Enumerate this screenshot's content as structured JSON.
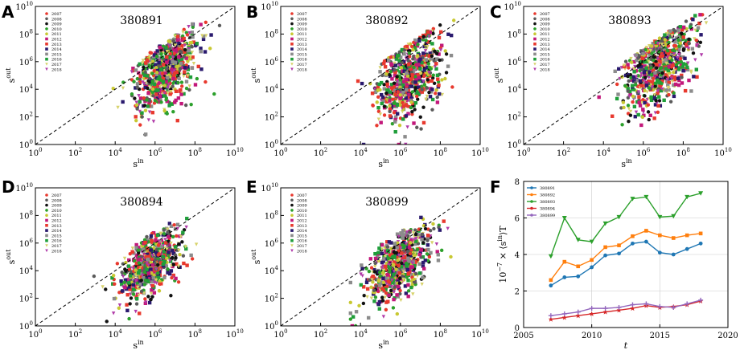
{
  "colors": {
    "2007": "#e8392e",
    "2008": "#5b5b5b",
    "2009": "#111111",
    "2010": "#2ca02c",
    "2011": "#c8c832",
    "2012": "#c2187a",
    "2013": "#e8392e",
    "2014": "#2a1a6e",
    "2015": "#8c8c8c",
    "2016": "#1f9e3a",
    "2017": "#d7d26b",
    "2018": "#b03aa8",
    "series_380891": "#1f77b4",
    "series_380892": "#ff7f0e",
    "series_380893": "#2ca02c",
    "series_380894": "#d62728",
    "series_380899": "#9467bd"
  },
  "chart_data": [
    {
      "type": "scatter",
      "panel": "A",
      "title": "380891",
      "xlabel_base": "s",
      "xlabel_sup": "in",
      "ylabel_base": "s",
      "ylabel_sup": "out",
      "xlim_log10": [
        0,
        10
      ],
      "ylim_log10": [
        0,
        10
      ],
      "x_ticks": [
        {
          "base": "10",
          "exp": "0"
        },
        {
          "base": "10",
          "exp": "2"
        },
        {
          "base": "10",
          "exp": "4"
        },
        {
          "base": "10",
          "exp": "6"
        },
        {
          "base": "10",
          "exp": "8"
        },
        {
          "base": "10",
          "exp": "10"
        }
      ],
      "y_ticks": [
        {
          "base": "10",
          "exp": "0"
        },
        {
          "base": "10",
          "exp": "2"
        },
        {
          "base": "10",
          "exp": "4"
        },
        {
          "base": "10",
          "exp": "6"
        },
        {
          "base": "10",
          "exp": "8"
        },
        {
          "base": "10",
          "exp": "10"
        }
      ],
      "legend": [
        "2007",
        "2008",
        "2009",
        "2010",
        "2011",
        "2012",
        "2013",
        "2014",
        "2015",
        "2016",
        "2017",
        "2018"
      ],
      "diagonal": "y = x",
      "cloud": {
        "center_log10": [
          6.6,
          5.5
        ],
        "spread_log10": [
          0.8,
          1.7
        ],
        "n_points": 700,
        "min_x_log10": 2.5
      }
    },
    {
      "type": "scatter",
      "panel": "B",
      "title": "380892",
      "xlabel_base": "s",
      "xlabel_sup": "in",
      "ylabel_base": "s",
      "ylabel_sup": "out",
      "xlim_log10": [
        0,
        10
      ],
      "ylim_log10": [
        0,
        10
      ],
      "x_ticks": [
        {
          "base": "10",
          "exp": "0"
        },
        {
          "base": "10",
          "exp": "2"
        },
        {
          "base": "10",
          "exp": "4"
        },
        {
          "base": "10",
          "exp": "6"
        },
        {
          "base": "10",
          "exp": "8"
        },
        {
          "base": "10",
          "exp": "10"
        }
      ],
      "y_ticks": [
        {
          "base": "10",
          "exp": "0"
        },
        {
          "base": "10",
          "exp": "2"
        },
        {
          "base": "10",
          "exp": "4"
        },
        {
          "base": "10",
          "exp": "6"
        },
        {
          "base": "10",
          "exp": "8"
        },
        {
          "base": "10",
          "exp": "10"
        }
      ],
      "legend": [
        "2007",
        "2008",
        "2009",
        "2010",
        "2011",
        "2012",
        "2013",
        "2014",
        "2015",
        "2016",
        "2017",
        "2018"
      ],
      "diagonal": "y = x",
      "cloud": {
        "center_log10": [
          6.5,
          4.8
        ],
        "spread_log10": [
          0.8,
          1.9
        ],
        "n_points": 700,
        "min_x_log10": 3.0
      }
    },
    {
      "type": "scatter",
      "panel": "C",
      "title": "380893",
      "xlabel_base": "s",
      "xlabel_sup": "in",
      "ylabel_base": "s",
      "ylabel_sup": "out",
      "xlim_log10": [
        0,
        10
      ],
      "ylim_log10": [
        0,
        10
      ],
      "x_ticks": [
        {
          "base": "10",
          "exp": "0"
        },
        {
          "base": "10",
          "exp": "2"
        },
        {
          "base": "10",
          "exp": "4"
        },
        {
          "base": "10",
          "exp": "6"
        },
        {
          "base": "10",
          "exp": "8"
        },
        {
          "base": "10",
          "exp": "10"
        }
      ],
      "y_ticks": [
        {
          "base": "10",
          "exp": "0"
        },
        {
          "base": "10",
          "exp": "2"
        },
        {
          "base": "10",
          "exp": "4"
        },
        {
          "base": "10",
          "exp": "6"
        },
        {
          "base": "10",
          "exp": "8"
        },
        {
          "base": "10",
          "exp": "10"
        }
      ],
      "legend": [
        "2007",
        "2008",
        "2009",
        "2010",
        "2011",
        "2012",
        "2013",
        "2014",
        "2015",
        "2016",
        "2017",
        "2018"
      ],
      "diagonal": "y = x",
      "cloud": {
        "center_log10": [
          6.8,
          5.8
        ],
        "spread_log10": [
          0.9,
          1.9
        ],
        "n_points": 750,
        "min_x_log10": 3.5
      }
    },
    {
      "type": "scatter",
      "panel": "D",
      "title": "380894",
      "xlabel_base": "s",
      "xlabel_sup": "in",
      "ylabel_base": "s",
      "ylabel_sup": "out",
      "xlim_log10": [
        0,
        10
      ],
      "ylim_log10": [
        0,
        10
      ],
      "x_ticks": [
        {
          "base": "10",
          "exp": "0"
        },
        {
          "base": "10",
          "exp": "2"
        },
        {
          "base": "10",
          "exp": "4"
        },
        {
          "base": "10",
          "exp": "6"
        },
        {
          "base": "10",
          "exp": "8"
        },
        {
          "base": "10",
          "exp": "10"
        }
      ],
      "y_ticks": [
        {
          "base": "10",
          "exp": "0"
        },
        {
          "base": "10",
          "exp": "2"
        },
        {
          "base": "10",
          "exp": "4"
        },
        {
          "base": "10",
          "exp": "6"
        },
        {
          "base": "10",
          "exp": "8"
        },
        {
          "base": "10",
          "exp": "10"
        }
      ],
      "legend": [
        "2007",
        "2008",
        "2009",
        "2010",
        "2011",
        "2012",
        "2013",
        "2014",
        "2015",
        "2016",
        "2017",
        "2018"
      ],
      "diagonal": "y = x",
      "cloud": {
        "center_log10": [
          5.8,
          4.4
        ],
        "spread_log10": [
          0.8,
          1.4
        ],
        "n_points": 700,
        "min_x_log10": 2.2
      }
    },
    {
      "type": "scatter",
      "panel": "E",
      "title": "380899",
      "xlabel_base": "s",
      "xlabel_sup": "in",
      "ylabel_base": "s",
      "ylabel_sup": "out",
      "xlim_log10": [
        0,
        10
      ],
      "ylim_log10": [
        0,
        10
      ],
      "x_ticks": [
        {
          "base": "10",
          "exp": "0"
        },
        {
          "base": "10",
          "exp": "2"
        },
        {
          "base": "10",
          "exp": "4"
        },
        {
          "base": "10",
          "exp": "6"
        },
        {
          "base": "10",
          "exp": "8"
        },
        {
          "base": "10",
          "exp": "10"
        }
      ],
      "y_ticks": [
        {
          "base": "10",
          "exp": "0"
        },
        {
          "base": "10",
          "exp": "2"
        },
        {
          "base": "10",
          "exp": "4"
        },
        {
          "base": "10",
          "exp": "6"
        },
        {
          "base": "10",
          "exp": "8"
        },
        {
          "base": "10",
          "exp": "10"
        }
      ],
      "legend": [
        "2007",
        "2008",
        "2009",
        "2010",
        "2011",
        "2012",
        "2013",
        "2014",
        "2015",
        "2016",
        "2017",
        "2018"
      ],
      "diagonal": "y = x",
      "cloud": {
        "center_log10": [
          5.9,
          4.4
        ],
        "spread_log10": [
          0.8,
          1.4
        ],
        "n_points": 700,
        "min_x_log10": 3.5
      }
    },
    {
      "type": "line",
      "panel": "F",
      "xlabel": "t",
      "ylabel_prefix": "10",
      "ylabel_prefix_exp": "−7",
      "ylabel_rest": " × ⟨s",
      "ylabel_sup": "in",
      "ylabel_end": "⟩T",
      "xlim": [
        2005,
        2020
      ],
      "ylim": [
        0,
        8
      ],
      "x_ticks": [
        "2005",
        "2010",
        "2015",
        "2020"
      ],
      "y_ticks": [
        "0",
        "2",
        "4",
        "6",
        "8"
      ],
      "grid": true,
      "legend_position": "top-left",
      "x": [
        2007,
        2008,
        2009,
        2010,
        2011,
        2012,
        2013,
        2014,
        2015,
        2016,
        2017,
        2018
      ],
      "series": [
        {
          "name": "380891",
          "marker": "circle",
          "values": [
            2.3,
            2.75,
            2.8,
            3.3,
            3.95,
            4.05,
            4.6,
            4.7,
            4.1,
            4.0,
            4.3,
            4.6
          ]
        },
        {
          "name": "380892",
          "marker": "square",
          "values": [
            2.6,
            3.6,
            3.35,
            3.7,
            4.4,
            4.5,
            5.0,
            5.3,
            5.05,
            4.9,
            5.05,
            5.15
          ]
        },
        {
          "name": "380893",
          "marker": "triangle-down",
          "values": [
            3.9,
            6.0,
            4.8,
            4.7,
            5.7,
            6.05,
            7.05,
            7.15,
            6.05,
            6.1,
            7.15,
            7.35
          ]
        },
        {
          "name": "380894",
          "marker": "star",
          "values": [
            0.45,
            0.55,
            0.65,
            0.75,
            0.85,
            0.95,
            1.05,
            1.2,
            1.1,
            1.15,
            1.25,
            1.45
          ]
        },
        {
          "name": "380899",
          "marker": "plus",
          "values": [
            0.65,
            0.75,
            0.85,
            1.05,
            1.05,
            1.1,
            1.25,
            1.3,
            1.15,
            1.1,
            1.3,
            1.5
          ]
        }
      ]
    }
  ]
}
